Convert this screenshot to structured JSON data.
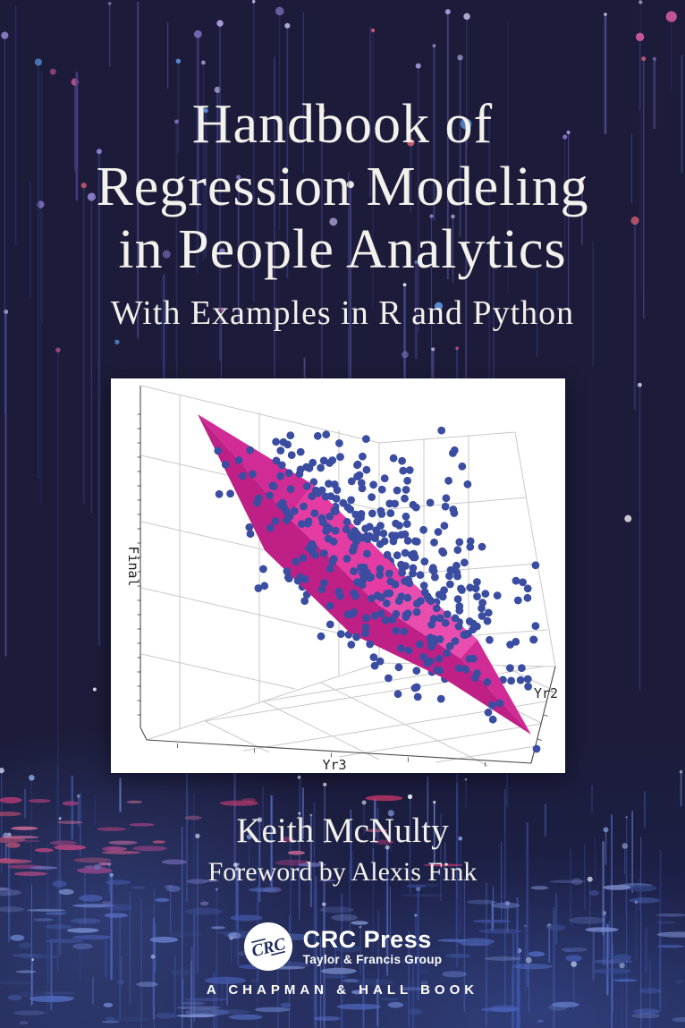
{
  "cover": {
    "title_lines": [
      "Handbook of",
      "Regression Modeling",
      "in People Analytics"
    ],
    "subtitle": "With Examples in R and Python",
    "author": "Keith McNulty",
    "foreword": "Foreword by Alexis Fink"
  },
  "plot": {
    "type": "3d-scatter-with-regression-plane",
    "x_label": "Yr3",
    "y_label": "Yr2",
    "z_label": "Final",
    "point_color": "#3b4da1",
    "plane_color": "#cb2590",
    "plane_highlight": "#e83fa6",
    "plane_shadow": "#bf2086",
    "panel_background": "#ffffff",
    "grid_color": "#c9c9c9",
    "axis_color": "#4a4a4a"
  },
  "publisher": {
    "logo_text": "CRC",
    "name": "CRC Press",
    "group": "Taylor & Francis Group",
    "imprint_line": "A CHAPMAN & HALL BOOK"
  },
  "style": {
    "background": "#1c1c3a",
    "text_color": "#f3f1ec",
    "streak_line_colors": [
      "#3a3f7d",
      "#4a4490",
      "#303c85",
      "#5b54a5",
      "#2b2f66",
      "#6a63b5",
      "#48589e"
    ],
    "streak_cap_colors": [
      "#8d80cc",
      "#a99ddb",
      "#efeef8",
      "#ffffff",
      "#c4559a",
      "#d95f74",
      "#7e6fc0",
      "#b7aede",
      "#5b8fd8"
    ],
    "bottom_line_colors": [
      "#4a5fb5",
      "#5a72cc",
      "#39519f",
      "#7288d6",
      "#2e3f85"
    ],
    "red_dash_colors": [
      "#e13a69",
      "#cf3870",
      "#b23772",
      "#ef6f92",
      "#d94b60"
    ],
    "purple_dash_colors": [
      "#8a7fd0",
      "#6f64b8",
      "#a07bc8"
    ],
    "blue_dash_colors": [
      "#5d76cc",
      "#475cb0",
      "#8298dd",
      "#35477f",
      "#9fb0e8"
    ],
    "logo_navy": "#1e2a5c"
  }
}
